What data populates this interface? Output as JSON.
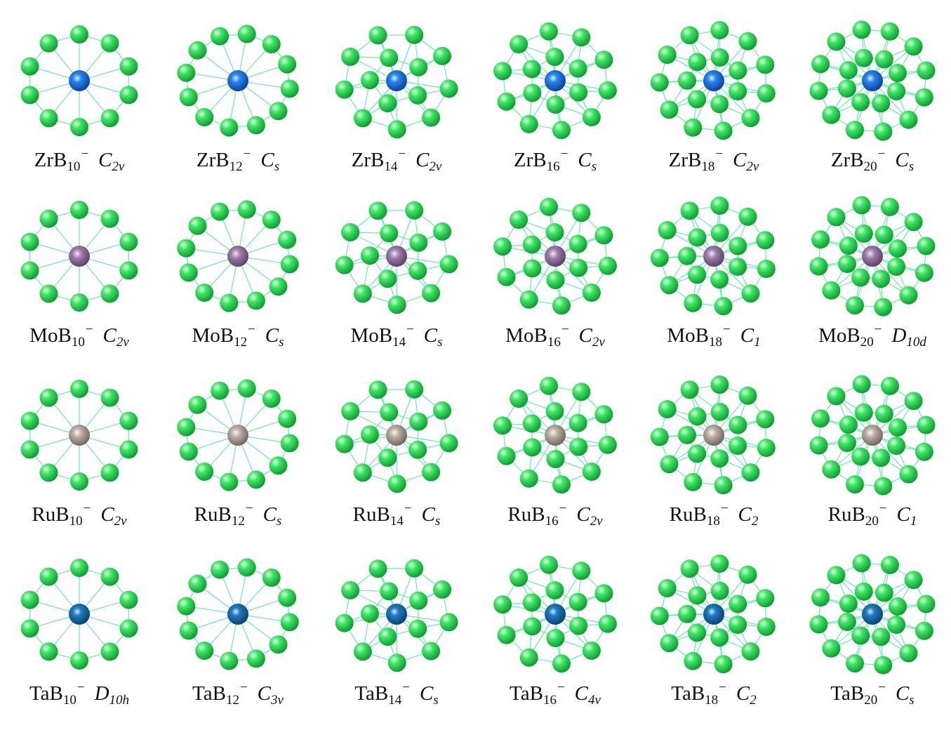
{
  "colors": {
    "boron": "#2fd855",
    "bond": "#5fe3b0",
    "metal_Zr": "#1a66d6",
    "metal_Mo": "#8c6a96",
    "metal_Ru": "#a89a90",
    "metal_Ta": "#1d6aa8"
  },
  "charge": "−",
  "rows": [
    {
      "metal": "Zr",
      "clusters": [
        {
          "id": "ZrB10",
          "prefix": "ZrB",
          "n": "10",
          "sym": "C",
          "symsub": "2v",
          "atoms": 10
        },
        {
          "id": "ZrB12",
          "prefix": "ZrB",
          "n": "12",
          "sym": "C",
          "symsub": "s",
          "atoms": 12
        },
        {
          "id": "ZrB14",
          "prefix": "ZrB",
          "n": "14",
          "sym": "C",
          "symsub": "2v",
          "atoms": 14
        },
        {
          "id": "ZrB16",
          "prefix": "ZrB",
          "n": "16",
          "sym": "C",
          "symsub": "s",
          "atoms": 16
        },
        {
          "id": "ZrB18",
          "prefix": "ZrB",
          "n": "18",
          "sym": "C",
          "symsub": "2v",
          "atoms": 18
        },
        {
          "id": "ZrB20",
          "prefix": "ZrB",
          "n": "20",
          "sym": "C",
          "symsub": "s",
          "atoms": 20
        }
      ]
    },
    {
      "metal": "Mo",
      "clusters": [
        {
          "id": "MoB10",
          "prefix": "MoB",
          "n": "10",
          "sym": "C",
          "symsub": "2v",
          "atoms": 10
        },
        {
          "id": "MoB12",
          "prefix": "MoB",
          "n": "12",
          "sym": "C",
          "symsub": "s",
          "atoms": 12
        },
        {
          "id": "MoB14",
          "prefix": "MoB",
          "n": "14",
          "sym": "C",
          "symsub": "s",
          "atoms": 14
        },
        {
          "id": "MoB16",
          "prefix": "MoB",
          "n": "16",
          "sym": "C",
          "symsub": "2v",
          "atoms": 16
        },
        {
          "id": "MoB18",
          "prefix": "MoB",
          "n": "18",
          "sym": "C",
          "symsub": "1",
          "atoms": 18
        },
        {
          "id": "MoB20",
          "prefix": "MoB",
          "n": "20",
          "sym": "D",
          "symsub": "10d",
          "atoms": 20
        }
      ]
    },
    {
      "metal": "Ru",
      "clusters": [
        {
          "id": "RuB10",
          "prefix": "RuB",
          "n": "10",
          "sym": "C",
          "symsub": "2v",
          "atoms": 10
        },
        {
          "id": "RuB12",
          "prefix": "RuB",
          "n": "12",
          "sym": "C",
          "symsub": "s",
          "atoms": 12
        },
        {
          "id": "RuB14",
          "prefix": "RuB",
          "n": "14",
          "sym": "C",
          "symsub": "s",
          "atoms": 14
        },
        {
          "id": "RuB16",
          "prefix": "RuB",
          "n": "16",
          "sym": "C",
          "symsub": "2v",
          "atoms": 16
        },
        {
          "id": "RuB18",
          "prefix": "RuB",
          "n": "18",
          "sym": "C",
          "symsub": "2",
          "atoms": 18
        },
        {
          "id": "RuB20",
          "prefix": "RuB",
          "n": "20",
          "sym": "C",
          "symsub": "1",
          "atoms": 20
        }
      ]
    },
    {
      "metal": "Ta",
      "clusters": [
        {
          "id": "TaB10",
          "prefix": "TaB",
          "n": "10",
          "sym": "D",
          "symsub": "10h",
          "atoms": 10
        },
        {
          "id": "TaB12",
          "prefix": "TaB",
          "n": "12",
          "sym": "C",
          "symsub": "3v",
          "atoms": 12
        },
        {
          "id": "TaB14",
          "prefix": "TaB",
          "n": "14",
          "sym": "C",
          "symsub": "s",
          "atoms": 14
        },
        {
          "id": "TaB16",
          "prefix": "TaB",
          "n": "16",
          "sym": "C",
          "symsub": "4v",
          "atoms": 16
        },
        {
          "id": "TaB18",
          "prefix": "TaB",
          "n": "18",
          "sym": "C",
          "symsub": "2",
          "atoms": 18
        },
        {
          "id": "TaB20",
          "prefix": "TaB",
          "n": "20",
          "sym": "C",
          "symsub": "s",
          "atoms": 20
        }
      ]
    }
  ]
}
